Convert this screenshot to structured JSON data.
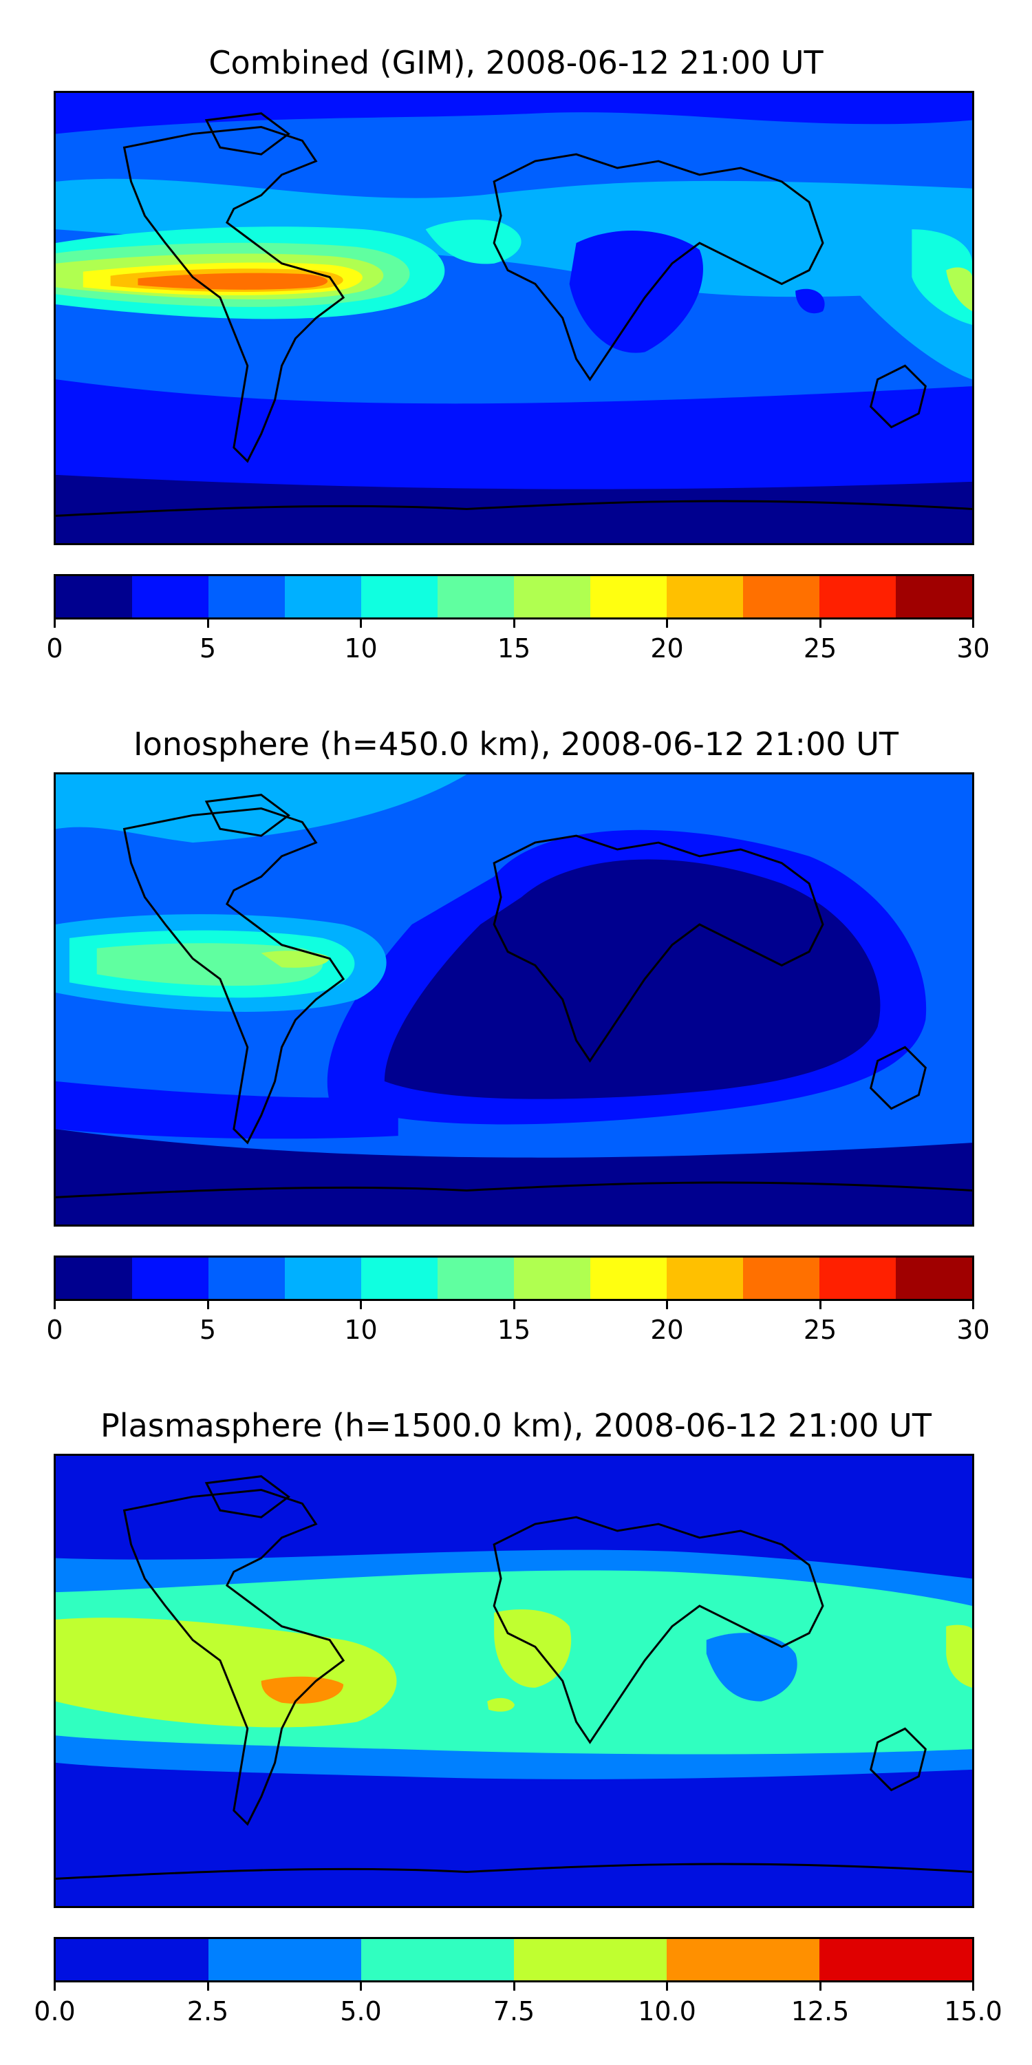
{
  "figure": {
    "panels": [
      {
        "title": "Combined (GIM), 2008-06-12 21:00 UT",
        "colorbar": {
          "levels": [
            0,
            2.5,
            5,
            7.5,
            10,
            12.5,
            15,
            17.5,
            20,
            22.5,
            25,
            27.5,
            30
          ],
          "colors": [
            "#00008f",
            "#0010ff",
            "#0060ff",
            "#00b0ff",
            "#10ffe0",
            "#60ffa0",
            "#b0ff50",
            "#ffff10",
            "#ffc000",
            "#ff7000",
            "#ff2000",
            "#a00000"
          ],
          "tick_labels": [
            "0",
            "5",
            "10",
            "15",
            "20",
            "25",
            "30"
          ],
          "tick_values": [
            0,
            5,
            10,
            15,
            20,
            25,
            30
          ]
        }
      },
      {
        "title": "Ionosphere  (h=450.0 km), 2008-06-12 21:00 UT",
        "colorbar": {
          "levels": [
            0,
            2.5,
            5,
            7.5,
            10,
            12.5,
            15,
            17.5,
            20,
            22.5,
            25,
            27.5,
            30
          ],
          "colors": [
            "#00008f",
            "#0010ff",
            "#0060ff",
            "#00b0ff",
            "#10ffe0",
            "#60ffa0",
            "#b0ff50",
            "#ffff10",
            "#ffc000",
            "#ff7000",
            "#ff2000",
            "#a00000"
          ],
          "tick_labels": [
            "0",
            "5",
            "10",
            "15",
            "20",
            "25",
            "30"
          ],
          "tick_values": [
            0,
            5,
            10,
            15,
            20,
            25,
            30
          ]
        }
      },
      {
        "title": "Plasmasphere (h=1500.0 km), 2008-06-12 21:00 UT",
        "colorbar": {
          "levels": [
            0,
            2.5,
            5,
            7.5,
            10,
            12.5,
            15
          ],
          "colors": [
            "#0010e0",
            "#0080ff",
            "#30ffc0",
            "#c0ff30",
            "#ff9000",
            "#e00000"
          ],
          "tick_labels": [
            "0.0",
            "2.5",
            "5.0",
            "7.5",
            "10.0",
            "12.5",
            "15.0"
          ],
          "tick_values": [
            0,
            2.5,
            5,
            7.5,
            10,
            12.5,
            15
          ]
        }
      }
    ]
  }
}
